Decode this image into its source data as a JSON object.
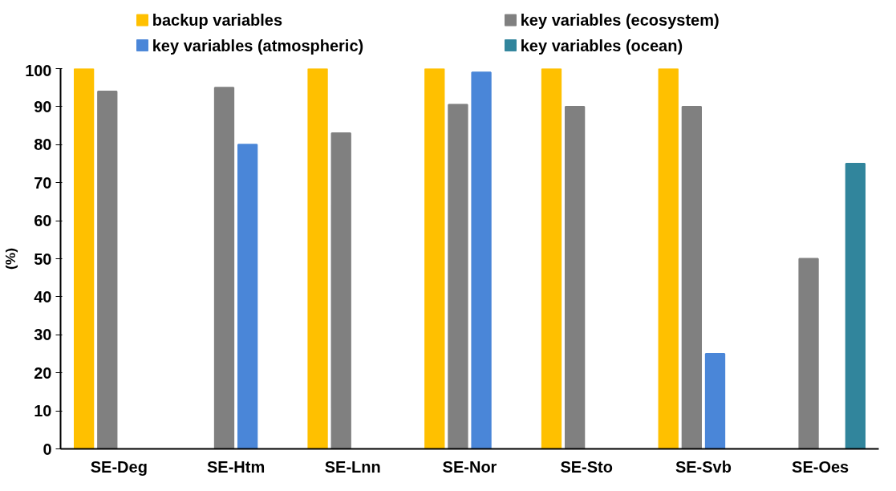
{
  "chart_data": {
    "type": "bar",
    "ylabel": "(%)",
    "categories": [
      "SE-Deg",
      "SE-Htm",
      "SE-Lnn",
      "SE-Nor",
      "SE-Sto",
      "SE-Svb",
      "SE-Oes"
    ],
    "series": [
      {
        "name": "backup variables",
        "color": "#ffc000",
        "values": [
          100,
          null,
          100,
          100,
          100,
          100,
          null
        ]
      },
      {
        "name": "key variables (ecosystem)",
        "color": "#808080",
        "values": [
          94,
          95,
          83,
          90.5,
          90,
          90,
          50
        ]
      },
      {
        "name": "key variables (atmospheric)",
        "color": "#4a86d8",
        "values": [
          null,
          80,
          null,
          99,
          null,
          25,
          null
        ]
      },
      {
        "name": "key variables (ocean)",
        "color": "#31859c",
        "values": [
          null,
          null,
          null,
          null,
          null,
          null,
          75
        ]
      }
    ],
    "ylim": [
      0,
      100
    ],
    "yticks": [
      0,
      10,
      20,
      30,
      40,
      50,
      60,
      70,
      80,
      90,
      100
    ],
    "grid": false,
    "legend": "top"
  }
}
